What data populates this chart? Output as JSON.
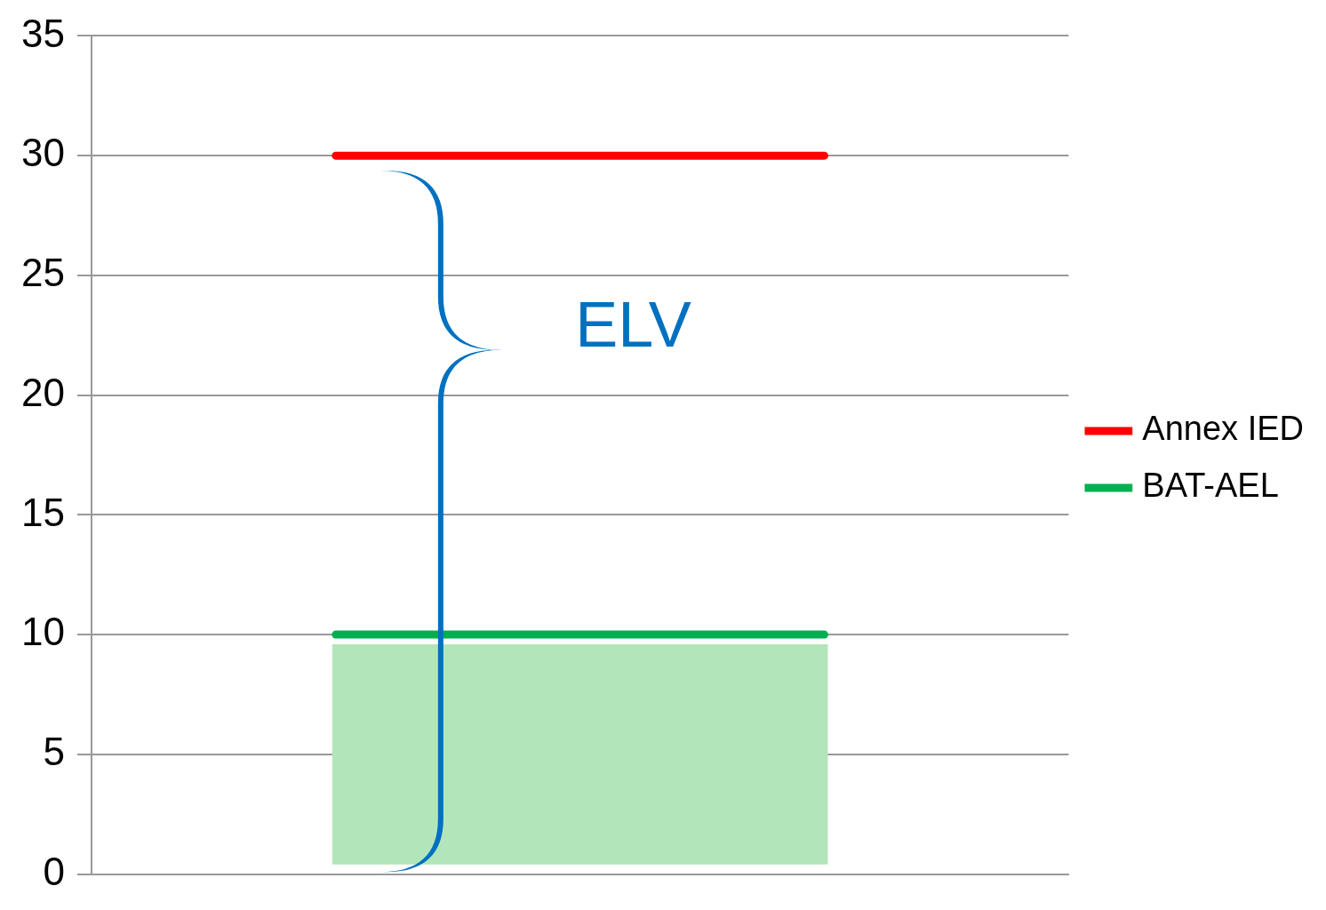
{
  "chart_data": {
    "type": "line",
    "categories": [
      null,
      null
    ],
    "series": [
      {
        "name": "Annex IED",
        "color": "#ff0000",
        "values": [
          30,
          30
        ]
      },
      {
        "name": "BAT-AEL",
        "color": "#00b050",
        "values": [
          10,
          10
        ]
      }
    ],
    "bands": [
      {
        "axis": "y",
        "from": 0.4,
        "to": 9.6,
        "color": "#b2e5b9"
      }
    ],
    "annotations": [
      "ELV"
    ],
    "ylim": [
      0,
      35
    ],
    "yticks": [
      0,
      5,
      10,
      15,
      20,
      25,
      30,
      35
    ],
    "grid": "y",
    "legend": "right",
    "tick_labels": "y",
    "marker": "none",
    "line_style": "solid"
  }
}
